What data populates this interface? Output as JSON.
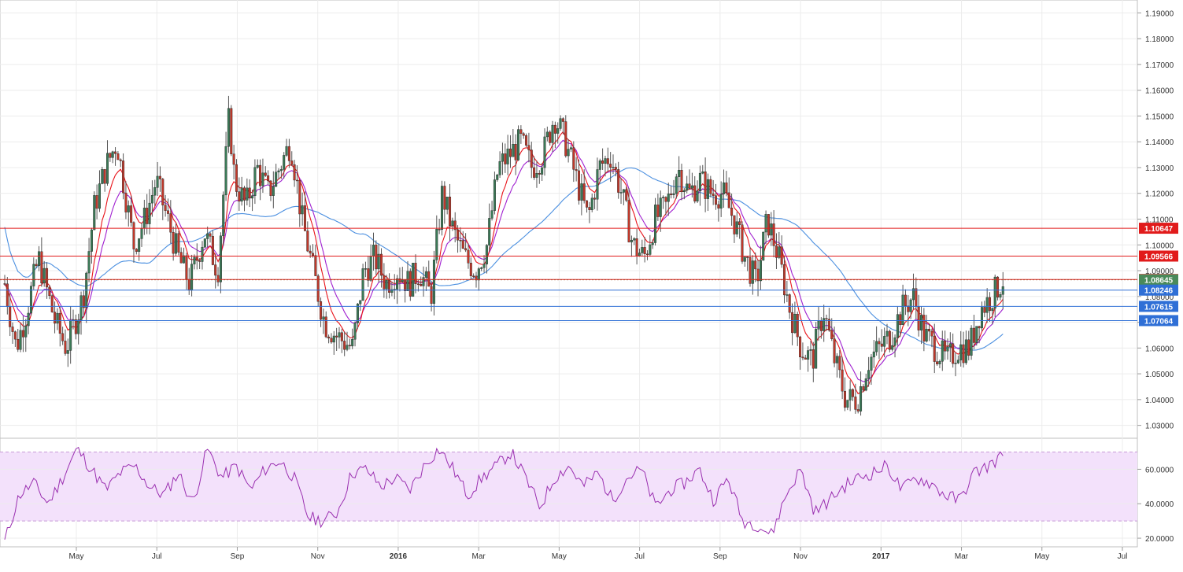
{
  "chart_data": [
    {
      "type": "candlestick",
      "panel": "price",
      "ylim": [
        1.025,
        1.195
      ],
      "y_ticks": [
        "1.19000",
        "1.18000",
        "1.17000",
        "1.16000",
        "1.15000",
        "1.14000",
        "1.13000",
        "1.12000",
        "1.11000",
        "1.10000",
        "1.09000",
        "1.08000",
        "1.07000",
        "1.06000",
        "1.05000",
        "1.04000",
        "1.03000"
      ],
      "x_ticks": [
        {
          "label": "May",
          "bold": false
        },
        {
          "label": "Jul",
          "bold": false
        },
        {
          "label": "Sep",
          "bold": false
        },
        {
          "label": "Nov",
          "bold": false
        },
        {
          "label": "2016",
          "bold": true
        },
        {
          "label": "Mar",
          "bold": false
        },
        {
          "label": "May",
          "bold": false
        },
        {
          "label": "Jul",
          "bold": false
        },
        {
          "label": "Sep",
          "bold": false
        },
        {
          "label": "Nov",
          "bold": false
        },
        {
          "label": "2017",
          "bold": true
        },
        {
          "label": "Mar",
          "bold": false
        },
        {
          "label": "May",
          "bold": false
        },
        {
          "label": "Jul",
          "bold": false
        }
      ],
      "colors": {
        "up": "#3b7a57",
        "down": "#c0392b",
        "wick": "#555555",
        "ema_fast": "#e8131a",
        "ema_mid": "#a020d0",
        "sma_slow": "#4a8fe0",
        "resistance": "#e11b1b",
        "support": "#2f6fd6"
      },
      "close_path": [
        {
          "t": 0.0,
          "v": 1.085
        },
        {
          "t": 0.01,
          "v": 1.06
        },
        {
          "t": 0.02,
          "v": 1.075
        },
        {
          "t": 0.03,
          "v": 1.095
        },
        {
          "t": 0.045,
          "v": 1.07
        },
        {
          "t": 0.055,
          "v": 1.06
        },
        {
          "t": 0.07,
          "v": 1.08
        },
        {
          "t": 0.08,
          "v": 1.115
        },
        {
          "t": 0.09,
          "v": 1.13
        },
        {
          "t": 0.1,
          "v": 1.14
        },
        {
          "t": 0.115,
          "v": 1.1
        },
        {
          "t": 0.125,
          "v": 1.11
        },
        {
          "t": 0.135,
          "v": 1.125
        },
        {
          "t": 0.145,
          "v": 1.11
        },
        {
          "t": 0.155,
          "v": 1.095
        },
        {
          "t": 0.165,
          "v": 1.085
        },
        {
          "t": 0.178,
          "v": 1.105
        },
        {
          "t": 0.19,
          "v": 1.09
        },
        {
          "t": 0.2,
          "v": 1.15
        },
        {
          "t": 0.205,
          "v": 1.125
        },
        {
          "t": 0.215,
          "v": 1.115
        },
        {
          "t": 0.225,
          "v": 1.13
        },
        {
          "t": 0.235,
          "v": 1.12
        },
        {
          "t": 0.245,
          "v": 1.13
        },
        {
          "t": 0.255,
          "v": 1.14
        },
        {
          "t": 0.265,
          "v": 1.11
        },
        {
          "t": 0.275,
          "v": 1.09
        },
        {
          "t": 0.285,
          "v": 1.07
        },
        {
          "t": 0.295,
          "v": 1.065
        },
        {
          "t": 0.31,
          "v": 1.06
        },
        {
          "t": 0.32,
          "v": 1.09
        },
        {
          "t": 0.33,
          "v": 1.095
        },
        {
          "t": 0.34,
          "v": 1.085
        },
        {
          "t": 0.35,
          "v": 1.09
        },
        {
          "t": 0.36,
          "v": 1.085
        },
        {
          "t": 0.37,
          "v": 1.09
        },
        {
          "t": 0.38,
          "v": 1.08
        },
        {
          "t": 0.39,
          "v": 1.12
        },
        {
          "t": 0.4,
          "v": 1.105
        },
        {
          "t": 0.41,
          "v": 1.095
        },
        {
          "t": 0.42,
          "v": 1.09
        },
        {
          "t": 0.43,
          "v": 1.1
        },
        {
          "t": 0.44,
          "v": 1.13
        },
        {
          "t": 0.45,
          "v": 1.135
        },
        {
          "t": 0.46,
          "v": 1.14
        },
        {
          "t": 0.47,
          "v": 1.13
        },
        {
          "t": 0.48,
          "v": 1.135
        },
        {
          "t": 0.49,
          "v": 1.15
        },
        {
          "t": 0.5,
          "v": 1.14
        },
        {
          "t": 0.51,
          "v": 1.125
        },
        {
          "t": 0.52,
          "v": 1.11
        },
        {
          "t": 0.53,
          "v": 1.13
        },
        {
          "t": 0.54,
          "v": 1.135
        },
        {
          "t": 0.55,
          "v": 1.12
        },
        {
          "t": 0.56,
          "v": 1.1
        },
        {
          "t": 0.57,
          "v": 1.095
        },
        {
          "t": 0.58,
          "v": 1.11
        },
        {
          "t": 0.59,
          "v": 1.115
        },
        {
          "t": 0.6,
          "v": 1.13
        },
        {
          "t": 0.61,
          "v": 1.12
        },
        {
          "t": 0.62,
          "v": 1.125
        },
        {
          "t": 0.63,
          "v": 1.12
        },
        {
          "t": 0.64,
          "v": 1.12
        },
        {
          "t": 0.65,
          "v": 1.11
        },
        {
          "t": 0.66,
          "v": 1.095
        },
        {
          "t": 0.67,
          "v": 1.085
        },
        {
          "t": 0.68,
          "v": 1.11
        },
        {
          "t": 0.69,
          "v": 1.095
        },
        {
          "t": 0.7,
          "v": 1.075
        },
        {
          "t": 0.71,
          "v": 1.06
        },
        {
          "t": 0.72,
          "v": 1.055
        },
        {
          "t": 0.73,
          "v": 1.075
        },
        {
          "t": 0.74,
          "v": 1.055
        },
        {
          "t": 0.75,
          "v": 1.04
        },
        {
          "t": 0.76,
          "v": 1.04
        },
        {
          "t": 0.77,
          "v": 1.055
        },
        {
          "t": 0.78,
          "v": 1.06
        },
        {
          "t": 0.79,
          "v": 1.065
        },
        {
          "t": 0.8,
          "v": 1.075
        },
        {
          "t": 0.81,
          "v": 1.08
        },
        {
          "t": 0.82,
          "v": 1.065
        },
        {
          "t": 0.83,
          "v": 1.06
        },
        {
          "t": 0.84,
          "v": 1.055
        },
        {
          "t": 0.85,
          "v": 1.06
        },
        {
          "t": 0.86,
          "v": 1.06
        },
        {
          "t": 0.87,
          "v": 1.075
        },
        {
          "t": 0.88,
          "v": 1.08
        },
        {
          "t": 0.89,
          "v": 1.0865
        }
      ],
      "horizontal_levels": [
        {
          "value": 1.10647,
          "label": "1.10647",
          "kind": "resistance"
        },
        {
          "value": 1.09566,
          "label": "1.09566",
          "kind": "resistance"
        },
        {
          "value": 1.08659,
          "label": "1.08659",
          "kind": "resistance"
        },
        {
          "value": 1.08645,
          "label": "1.08645",
          "kind": "last"
        },
        {
          "value": 1.08246,
          "label": "1.08246",
          "kind": "support"
        },
        {
          "value": 1.07615,
          "label": "1.07615",
          "kind": "support"
        },
        {
          "value": 1.07064,
          "label": "1.07064",
          "kind": "support"
        }
      ]
    },
    {
      "type": "line",
      "panel": "rsi",
      "ylim": [
        15,
        78
      ],
      "y_ticks": [
        "60.0000",
        "40.0000",
        "20.0000"
      ],
      "band": [
        30,
        70
      ],
      "color": "#9a2fb0",
      "band_color": "#f3e1fb",
      "values": [
        18,
        45,
        52,
        40,
        55,
        72,
        60,
        48,
        58,
        62,
        50,
        45,
        58,
        40,
        72,
        55,
        62,
        48,
        60,
        65,
        55,
        32,
        30,
        35,
        58,
        60,
        50,
        55,
        48,
        62,
        72,
        60,
        45,
        55,
        62,
        70,
        55,
        38,
        55,
        62,
        50,
        58,
        42,
        55,
        60,
        38,
        48,
        52,
        60,
        42,
        55,
        30,
        28,
        22,
        45,
        60,
        35,
        42,
        50,
        55,
        58,
        62,
        48,
        55,
        52,
        45,
        42,
        58,
        62,
        68
      ]
    }
  ]
}
